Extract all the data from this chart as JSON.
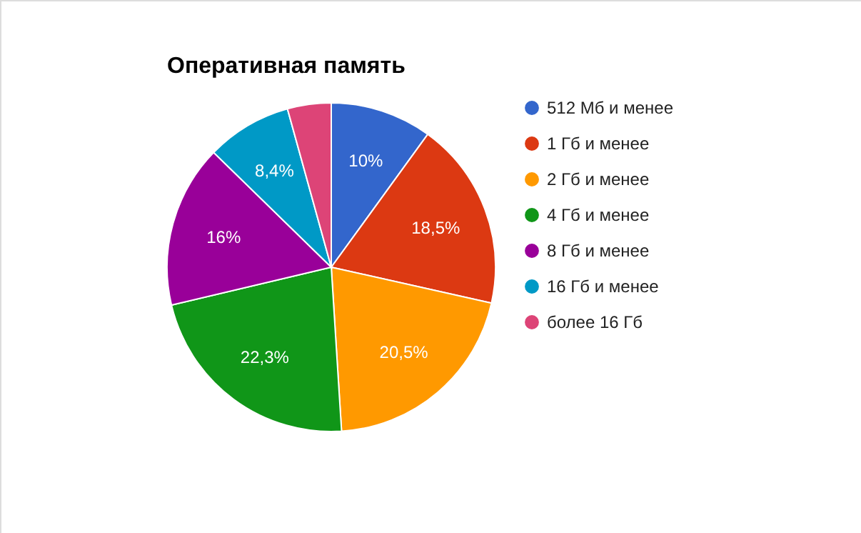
{
  "chart_data": {
    "type": "pie",
    "title": "Оперативная память",
    "categories": [
      "512 Мб и менее",
      "1 Гб и менее",
      "2 Гб и менее",
      "4 Гб и менее",
      "8 Гб и менее",
      "16 Гб и менее",
      "более 16 Гб"
    ],
    "values": [
      10,
      18.5,
      20.5,
      22.3,
      16,
      8.4,
      4.3
    ],
    "value_labels": [
      "10%",
      "18,5%",
      "20,5%",
      "22,3%",
      "16%",
      "8,4%",
      null
    ],
    "colors": [
      "#3366cc",
      "#dc3912",
      "#ff9900",
      "#109618",
      "#990099",
      "#0099c6",
      "#dd4477"
    ],
    "legend": "right"
  }
}
